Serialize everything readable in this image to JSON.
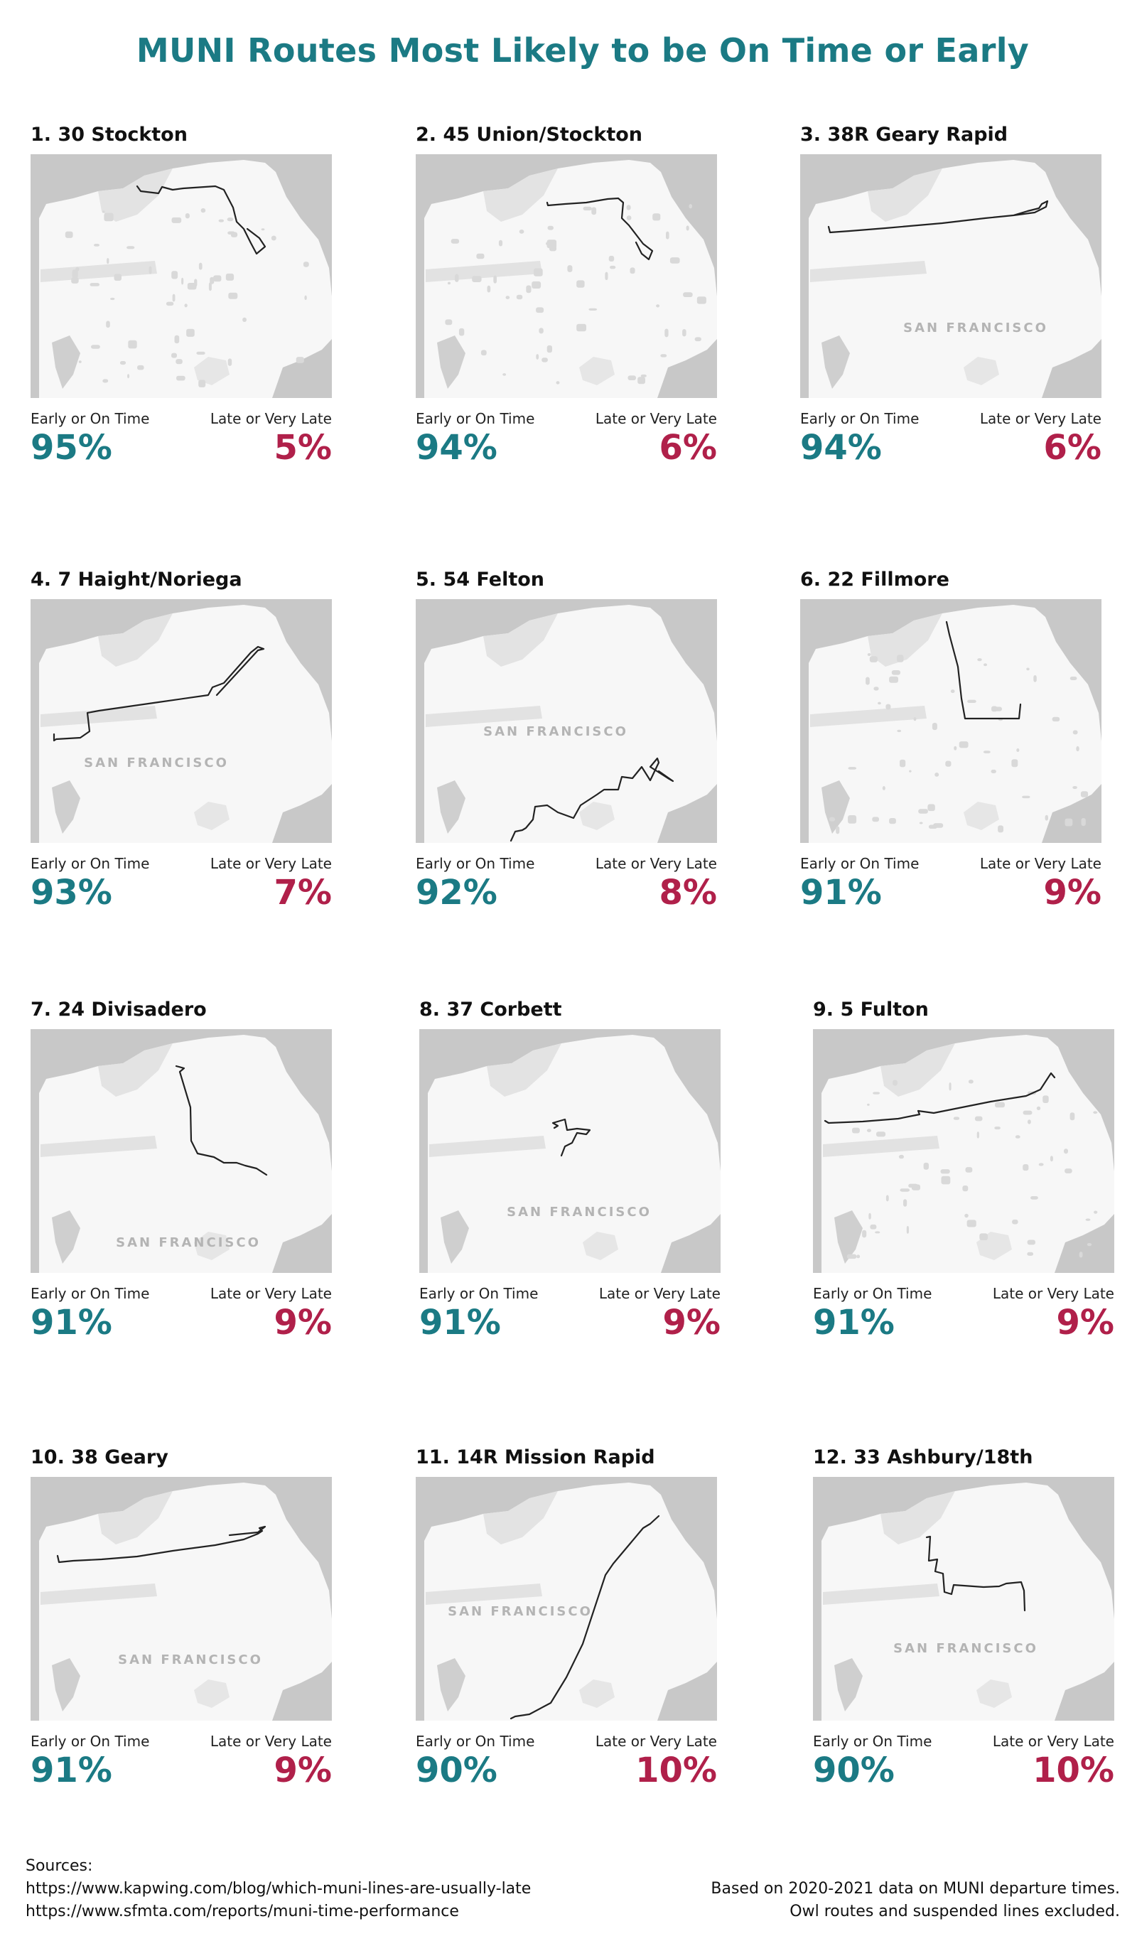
{
  "title": "MUNI Routes Most Likely to be On Time or Early",
  "labels": {
    "on_time": "Early or On Time",
    "late": "Late or Very Late",
    "map_label": "SAN FRANCISCO"
  },
  "colors": {
    "on_time": "#1b7a84",
    "late": "#b0204a",
    "route_line": "#222222"
  },
  "chart_data": {
    "type": "table",
    "columns": [
      "Route",
      "Early or On Time",
      "Late or Very Late"
    ],
    "rows": [
      {
        "rank": 1,
        "route": "1. 30 Stockton",
        "on_time": 95,
        "late": 5
      },
      {
        "rank": 2,
        "route": "2. 45 Union/Stockton",
        "on_time": 94,
        "late": 6
      },
      {
        "rank": 3,
        "route": "3. 38R Geary Rapid",
        "on_time": 94,
        "late": 6
      },
      {
        "rank": 4,
        "route": "4. 7 Haight/Noriega",
        "on_time": 93,
        "late": 7
      },
      {
        "rank": 5,
        "route": "5. 54 Felton",
        "on_time": 92,
        "late": 8
      },
      {
        "rank": 6,
        "route": "6. 22 Fillmore",
        "on_time": 91,
        "late": 9
      },
      {
        "rank": 7,
        "route": "7. 24 Divisadero",
        "on_time": 91,
        "late": 9
      },
      {
        "rank": 8,
        "route": "8. 37 Corbett",
        "on_time": 91,
        "late": 9
      },
      {
        "rank": 9,
        "route": "9. 5 Fulton",
        "on_time": 91,
        "late": 9
      },
      {
        "rank": 10,
        "route": "10. 38 Geary",
        "on_time": 91,
        "late": 9
      },
      {
        "rank": 11,
        "route": "11. 14R Mission Rapid",
        "on_time": 90,
        "late": 10
      },
      {
        "rank": 12,
        "route": "12. 33 Ashbury/18th",
        "on_time": 90,
        "late": 10
      }
    ]
  },
  "pct_text": {
    "on_time": [
      "95%",
      "94%",
      "94%",
      "93%",
      "92%",
      "91%",
      "91%",
      "91%",
      "91%",
      "91%",
      "90%",
      "90%"
    ],
    "late": [
      "5%",
      "6%",
      "6%",
      "7%",
      "8%",
      "9%",
      "9%",
      "9%",
      "9%",
      "9%",
      "10%",
      "10%"
    ]
  },
  "footer": {
    "sources_heading": "Sources:",
    "source_1": "https://www.kapwing.com/blog/which-muni-lines-are-usually-late",
    "source_2": "https://www.sfmta.com/reports/muni-time-performance",
    "note_1": "Based on 2020-2021 data on MUNI departure times.",
    "note_2": "Owl routes and suspended lines excluded."
  }
}
